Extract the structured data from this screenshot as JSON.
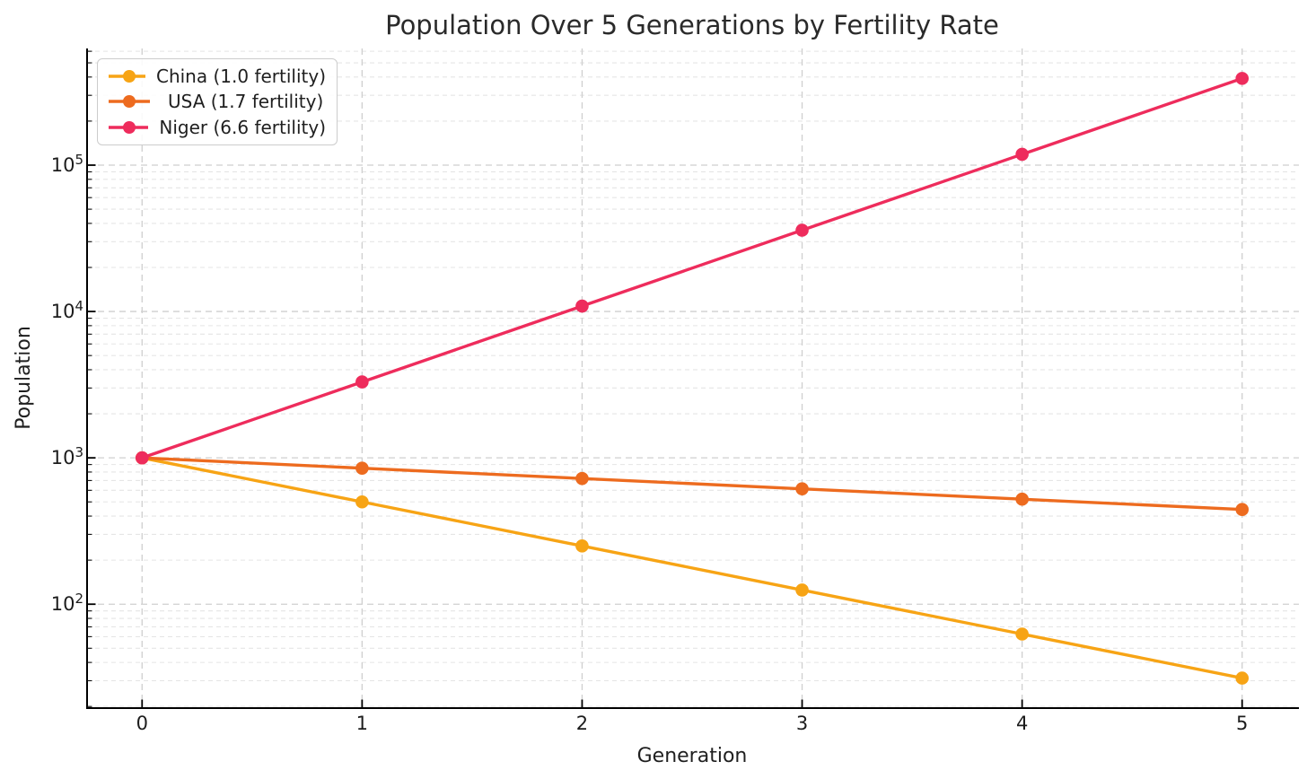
{
  "figure": {
    "background": "#ffffff",
    "text_color": "#1f1f1f",
    "spine_color": "#000000",
    "grid_major_color": "#cfcfcf",
    "grid_minor_color": "#e5e5e5"
  },
  "chart_data": {
    "type": "line",
    "title": "Population Over 5 Generations by Fertility Rate",
    "xlabel": "Generation",
    "ylabel": "Population",
    "x": [
      0,
      1,
      2,
      3,
      4,
      5
    ],
    "xtick_labels": [
      "0",
      "1",
      "2",
      "3",
      "4",
      "5"
    ],
    "y_scale": "log",
    "ytick_exponents": [
      2,
      3,
      4,
      5
    ],
    "xlim": [
      -0.25,
      5.25
    ],
    "ylim": [
      19.5,
      627000
    ],
    "grid": {
      "major": true,
      "minor": true,
      "style": "dashed"
    },
    "legend_position": "upper left",
    "series": [
      {
        "name": "China (1.0 fertility)",
        "color": "#F7A415",
        "values": [
          1000,
          500,
          250,
          125,
          62.5,
          31.25
        ]
      },
      {
        "name": "USA (1.7 fertility)",
        "color": "#ED6B1F",
        "values": [
          1000,
          850,
          722.5,
          614.1,
          522.0,
          443.7
        ]
      },
      {
        "name": "Niger (6.6 fertility)",
        "color": "#EE2C5C",
        "values": [
          1000,
          3300,
          10890,
          35937,
          118592,
          391354
        ]
      }
    ]
  }
}
